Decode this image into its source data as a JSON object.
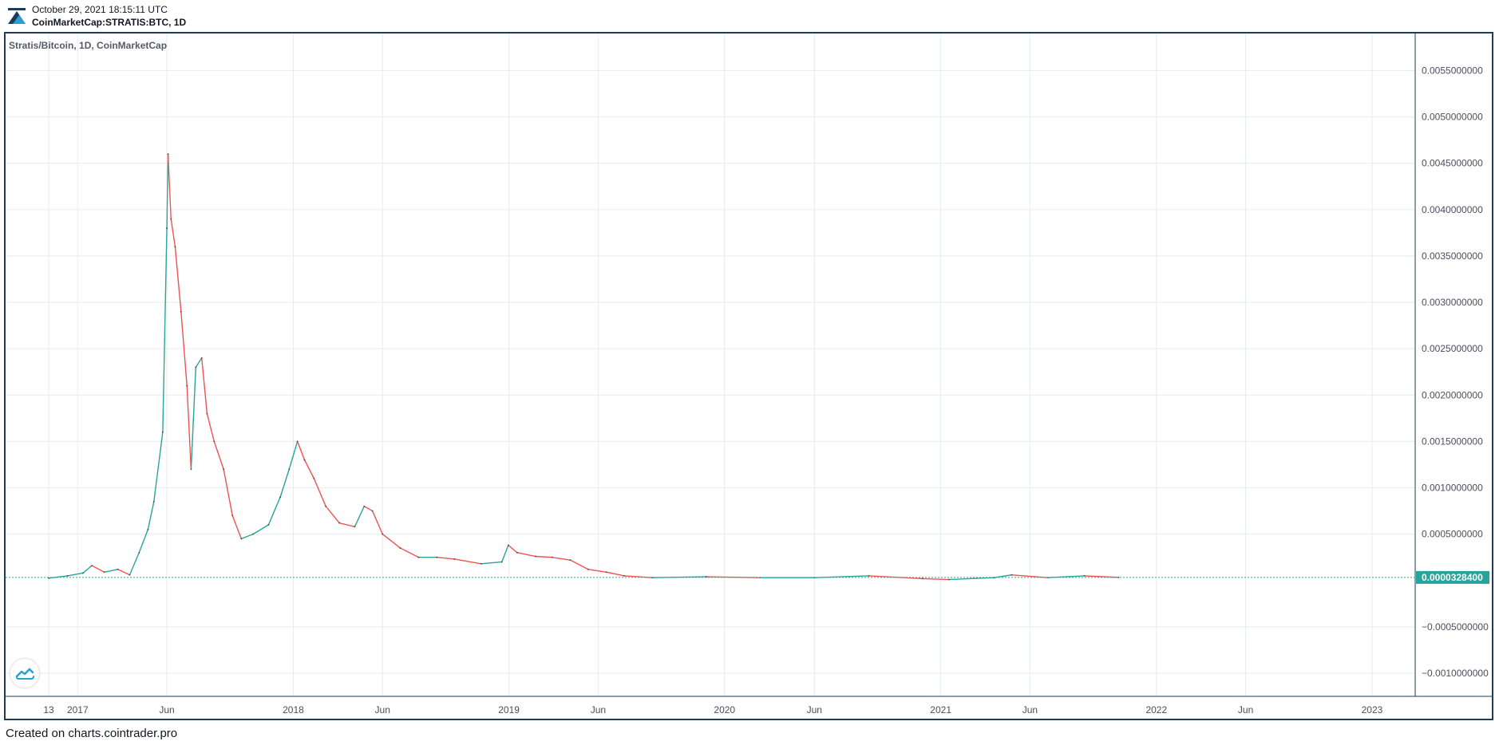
{
  "header": {
    "date": "October 29, 2021 18:15:11 UTC",
    "symbol": "CoinMarketCap:STRATIS:BTC, 1D"
  },
  "footer": {
    "text": "Created on charts.cointrader.pro"
  },
  "colors": {
    "up": "#26a69a",
    "down": "#ef5350",
    "grid": "#e6ecf0",
    "frame": "#1f3b57",
    "price_line": "#26a69a"
  },
  "icons": {
    "logo": "cointrader-logo-icon",
    "badge": "tradingview-cloud-icon"
  },
  "chart_data": {
    "type": "line",
    "title": "Stratis/Bitcoin, 1D, CoinMarketCap",
    "xlabel": "",
    "ylabel": "",
    "grid": true,
    "ylim": [
      -0.00125,
      0.0059
    ],
    "y_ticks": [
      {
        "value": 0.0055,
        "label": "0.0055000000"
      },
      {
        "value": 0.005,
        "label": "0.0050000000"
      },
      {
        "value": 0.0045,
        "label": "0.0045000000"
      },
      {
        "value": 0.004,
        "label": "0.0040000000"
      },
      {
        "value": 0.0035,
        "label": "0.0035000000"
      },
      {
        "value": 0.003,
        "label": "0.0030000000"
      },
      {
        "value": 0.0025,
        "label": "0.0025000000"
      },
      {
        "value": 0.002,
        "label": "0.0020000000"
      },
      {
        "value": 0.0015,
        "label": "0.0015000000"
      },
      {
        "value": 0.001,
        "label": "0.0010000000"
      },
      {
        "value": 0.0005,
        "label": "0.0005000000"
      },
      {
        "value": -0.0005,
        "label": "−0.0005000000"
      },
      {
        "value": -0.001,
        "label": "−0.0010000000"
      }
    ],
    "x_range": [
      "2016-09-01",
      "2023-03-15"
    ],
    "x_ticks": [
      {
        "date": "2016-11-13",
        "label": "13"
      },
      {
        "date": "2017-01-01",
        "label": "2017"
      },
      {
        "date": "2017-06-01",
        "label": "Jun"
      },
      {
        "date": "2018-01-01",
        "label": "2018"
      },
      {
        "date": "2018-06-01",
        "label": "Jun"
      },
      {
        "date": "2019-01-01",
        "label": "2019"
      },
      {
        "date": "2019-06-01",
        "label": "Jun"
      },
      {
        "date": "2020-01-01",
        "label": "2020"
      },
      {
        "date": "2020-06-01",
        "label": "Jun"
      },
      {
        "date": "2021-01-01",
        "label": "2021"
      },
      {
        "date": "2021-06-01",
        "label": "Jun"
      },
      {
        "date": "2022-01-01",
        "label": "2022"
      },
      {
        "date": "2022-06-01",
        "label": "Jun"
      },
      {
        "date": "2023-01-01",
        "label": "2023"
      }
    ],
    "last_price": {
      "value": 3.284e-05,
      "label": "0.0000328400"
    },
    "series": [
      {
        "values": [
          [
            "2016-11-13",
            2.5e-05
          ],
          [
            "2016-12-15",
            5e-05
          ],
          [
            "2017-01-10",
            8e-05
          ],
          [
            "2017-01-25",
            0.00016
          ],
          [
            "2017-02-15",
            9e-05
          ],
          [
            "2017-03-10",
            0.00012
          ],
          [
            "2017-03-30",
            6e-05
          ],
          [
            "2017-04-15",
            0.0003
          ],
          [
            "2017-04-30",
            0.00055
          ],
          [
            "2017-05-10",
            0.00085
          ],
          [
            "2017-05-25",
            0.0016
          ],
          [
            "2017-06-01",
            0.0038
          ],
          [
            "2017-06-03",
            0.0046
          ],
          [
            "2017-06-08",
            0.0039
          ],
          [
            "2017-06-15",
            0.0036
          ],
          [
            "2017-06-25",
            0.0029
          ],
          [
            "2017-07-05",
            0.0021
          ],
          [
            "2017-07-12",
            0.0012
          ],
          [
            "2017-07-20",
            0.0023
          ],
          [
            "2017-07-30",
            0.0024
          ],
          [
            "2017-08-08",
            0.0018
          ],
          [
            "2017-08-20",
            0.0015
          ],
          [
            "2017-09-05",
            0.0012
          ],
          [
            "2017-09-20",
            0.0007
          ],
          [
            "2017-10-05",
            0.00045
          ],
          [
            "2017-10-25",
            0.0005
          ],
          [
            "2017-11-20",
            0.0006
          ],
          [
            "2017-12-10",
            0.0009
          ],
          [
            "2017-12-25",
            0.0012
          ],
          [
            "2018-01-08",
            0.0015
          ],
          [
            "2018-01-20",
            0.0013
          ],
          [
            "2018-02-05",
            0.0011
          ],
          [
            "2018-02-25",
            0.0008
          ],
          [
            "2018-03-20",
            0.00062
          ],
          [
            "2018-04-15",
            0.00058
          ],
          [
            "2018-05-01",
            0.0008
          ],
          [
            "2018-05-15",
            0.00075
          ],
          [
            "2018-06-01",
            0.0005
          ],
          [
            "2018-07-01",
            0.00035
          ],
          [
            "2018-08-01",
            0.00025
          ],
          [
            "2018-09-01",
            0.00025
          ],
          [
            "2018-10-01",
            0.00023
          ],
          [
            "2018-11-15",
            0.00018
          ],
          [
            "2018-12-20",
            0.0002
          ],
          [
            "2018-12-31",
            0.00038
          ],
          [
            "2019-01-15",
            0.0003
          ],
          [
            "2019-02-15",
            0.00026
          ],
          [
            "2019-03-15",
            0.00025
          ],
          [
            "2019-04-15",
            0.00022
          ],
          [
            "2019-05-15",
            0.00012
          ],
          [
            "2019-06-15",
            9e-05
          ],
          [
            "2019-07-15",
            5e-05
          ],
          [
            "2019-09-01",
            3e-05
          ],
          [
            "2019-12-01",
            4e-05
          ],
          [
            "2020-03-01",
            3e-05
          ],
          [
            "2020-06-01",
            3e-05
          ],
          [
            "2020-09-01",
            5e-05
          ],
          [
            "2020-12-01",
            2e-05
          ],
          [
            "2021-01-15",
            1e-05
          ],
          [
            "2021-04-01",
            3e-05
          ],
          [
            "2021-05-01",
            6e-05
          ],
          [
            "2021-07-01",
            3e-05
          ],
          [
            "2021-09-01",
            5e-05
          ],
          [
            "2021-10-29",
            3.284e-05
          ]
        ]
      }
    ]
  }
}
